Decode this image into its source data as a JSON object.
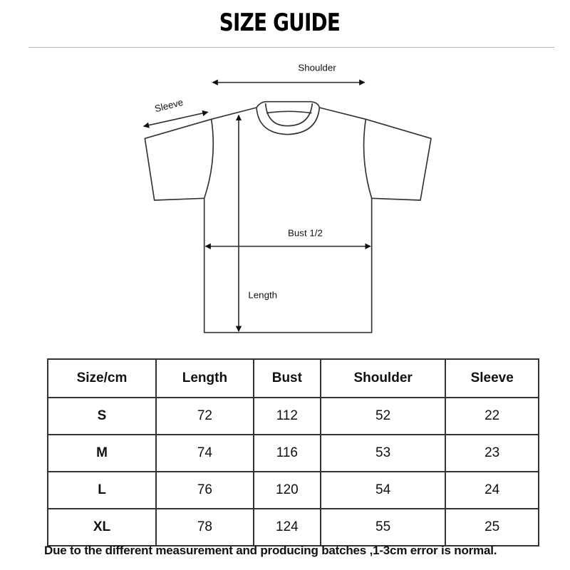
{
  "title": "SIZE GUIDE",
  "diagram": {
    "labels": {
      "shoulder": "Shoulder",
      "sleeve": "Sleeve",
      "bust": "Bust 1/2",
      "length": "Length"
    }
  },
  "table": {
    "headers": [
      "Size/cm",
      "Length",
      "Bust",
      "Shoulder",
      "Sleeve"
    ],
    "rows": [
      [
        "S",
        "72",
        "112",
        "52",
        "22"
      ],
      [
        "M",
        "74",
        "116",
        "53",
        "23"
      ],
      [
        "L",
        "76",
        "120",
        "54",
        "24"
      ],
      [
        "XL",
        "78",
        "124",
        "55",
        "25"
      ]
    ]
  },
  "note": "Due to the different measurement and producing batches ,1-3cm error is  normal."
}
